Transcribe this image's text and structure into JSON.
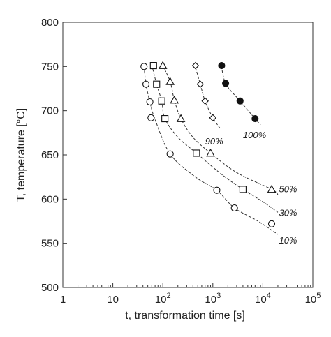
{
  "chart_data": {
    "type": "scatter",
    "xlabel": "t, transformation time [s]",
    "ylabel": "T, temperature [°C]",
    "xscale": "log",
    "xlim": [
      1,
      100000
    ],
    "ylim": [
      500,
      800
    ],
    "x_ticks": [
      {
        "value": 1,
        "base": "1",
        "exp": ""
      },
      {
        "value": 10,
        "base": "10",
        "exp": ""
      },
      {
        "value": 100,
        "base": "10",
        "exp": "2"
      },
      {
        "value": 1000,
        "base": "10",
        "exp": "3"
      },
      {
        "value": 10000,
        "base": "10",
        "exp": "4"
      },
      {
        "value": 100000,
        "base": "10",
        "exp": "5"
      }
    ],
    "y_ticks": [
      "500",
      "550",
      "600",
      "650",
      "700",
      "750",
      "800"
    ],
    "grid": false,
    "series": [
      {
        "name": "10%",
        "marker": "circle",
        "points": [
          [
            42,
            750
          ],
          [
            46,
            730
          ],
          [
            55,
            710
          ],
          [
            58,
            692
          ],
          [
            140,
            651
          ],
          [
            1200,
            610
          ],
          [
            2700,
            590
          ],
          [
            15000,
            572
          ]
        ],
        "curve": [
          [
            42,
            750
          ],
          [
            46,
            730
          ],
          [
            55,
            710
          ],
          [
            70,
            690
          ],
          [
            140,
            651
          ],
          [
            450,
            625
          ],
          [
            1200,
            610
          ],
          [
            2700,
            590
          ],
          [
            8000,
            575
          ],
          [
            20000,
            560
          ]
        ],
        "label_pos": [
          21000,
          553
        ]
      },
      {
        "name": "30%",
        "marker": "square",
        "points": [
          [
            65,
            751
          ],
          [
            75,
            730
          ],
          [
            95,
            711
          ],
          [
            110,
            691
          ],
          [
            470,
            652
          ],
          [
            4000,
            611
          ]
        ],
        "curve": [
          [
            60,
            752
          ],
          [
            75,
            730
          ],
          [
            95,
            711
          ],
          [
            110,
            691
          ],
          [
            200,
            670
          ],
          [
            470,
            652
          ],
          [
            1500,
            628
          ],
          [
            4000,
            611
          ],
          [
            10000,
            597
          ],
          [
            20000,
            585
          ]
        ],
        "label_pos": [
          21000,
          584
        ]
      },
      {
        "name": "50%",
        "marker": "triangle",
        "points": [
          [
            100,
            751
          ],
          [
            140,
            733
          ],
          [
            170,
            712
          ],
          [
            230,
            691
          ],
          [
            900,
            652
          ],
          [
            15000,
            611
          ]
        ],
        "curve": [
          [
            100,
            751
          ],
          [
            140,
            733
          ],
          [
            170,
            712
          ],
          [
            230,
            691
          ],
          [
            400,
            670
          ],
          [
            900,
            652
          ],
          [
            3000,
            630
          ],
          [
            15000,
            611
          ],
          [
            20000,
            605
          ]
        ],
        "label_pos": [
          21000,
          611
        ]
      },
      {
        "name": "90%",
        "marker": "diamond",
        "points": [
          [
            450,
            751
          ],
          [
            560,
            730
          ],
          [
            700,
            711
          ],
          [
            1000,
            692
          ]
        ],
        "curve": [
          [
            430,
            753
          ],
          [
            560,
            730
          ],
          [
            700,
            711
          ],
          [
            1000,
            692
          ],
          [
            1400,
            680
          ]
        ],
        "label_pos": [
          700,
          665
        ]
      },
      {
        "name": "100%",
        "marker": "filled-circle",
        "points": [
          [
            1500,
            751
          ],
          [
            1800,
            731
          ],
          [
            3500,
            711
          ],
          [
            7000,
            691
          ]
        ],
        "curve": [
          [
            1450,
            755
          ],
          [
            1800,
            731
          ],
          [
            3500,
            711
          ],
          [
            7000,
            691
          ],
          [
            9000,
            684
          ]
        ],
        "label_pos": [
          4000,
          672
        ]
      }
    ]
  }
}
